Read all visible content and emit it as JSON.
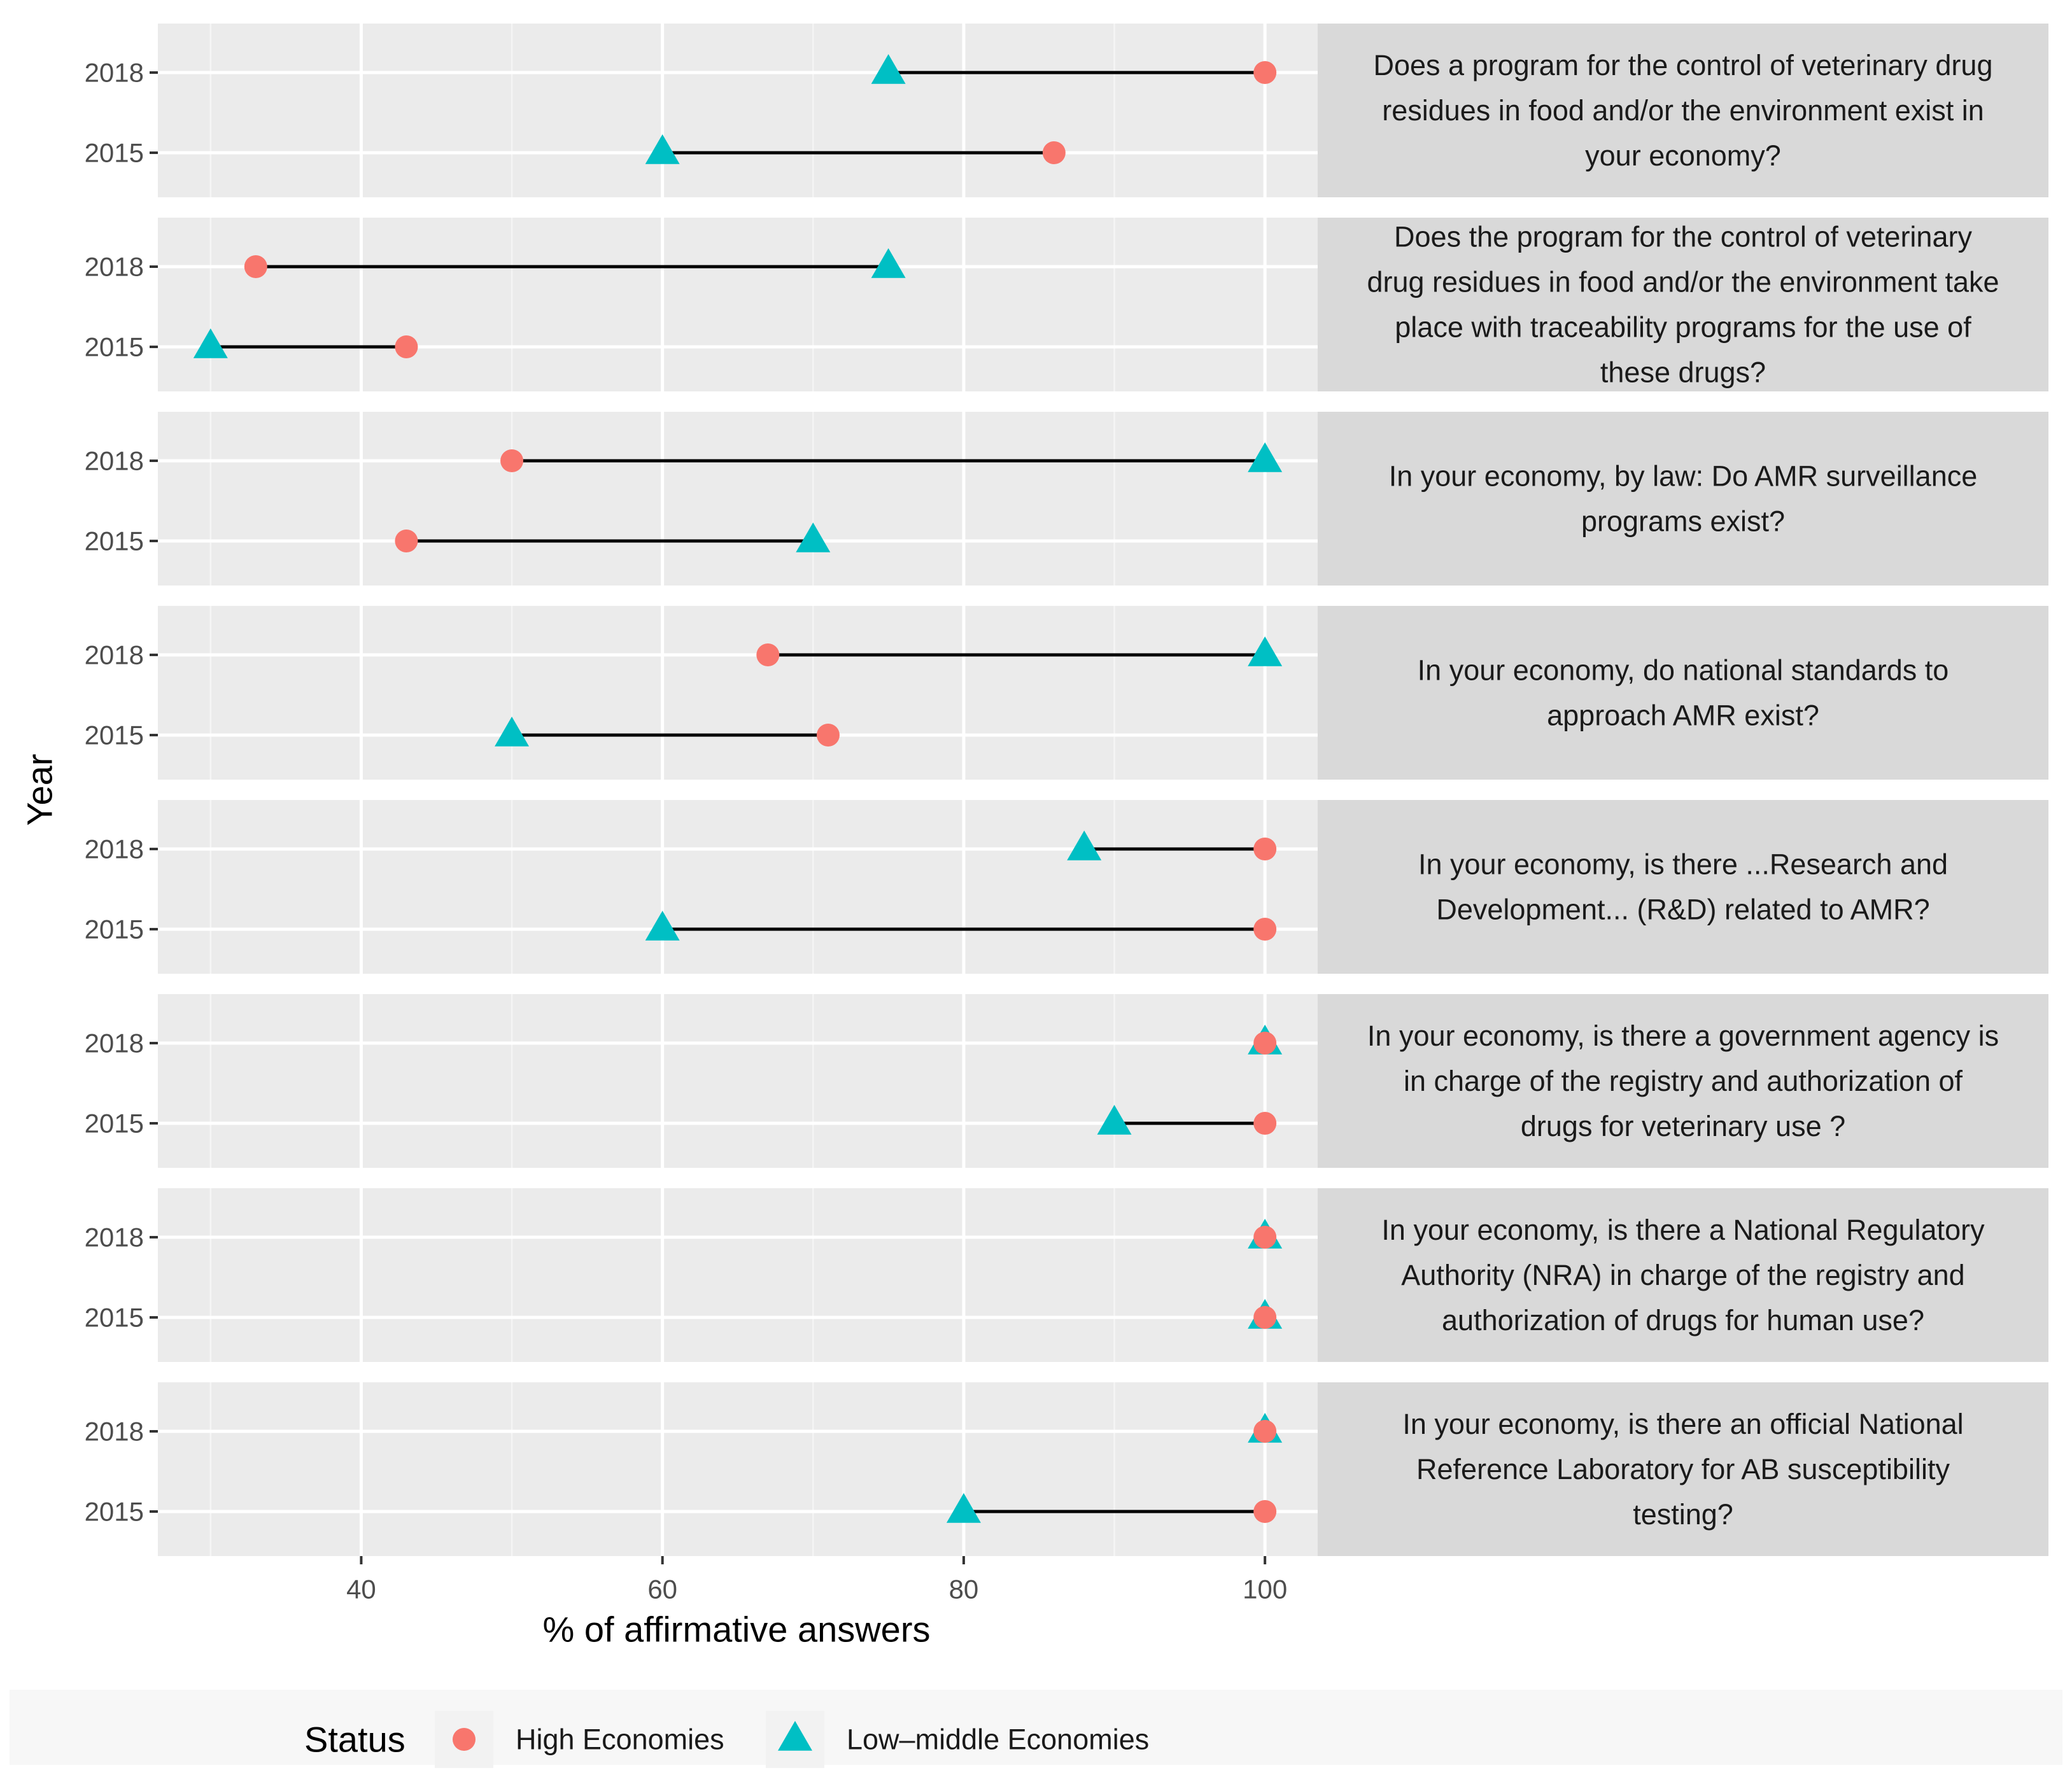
{
  "chart_data": {
    "type": "dumbbell",
    "xlabel": "% of affirmative answers",
    "ylabel": "Year",
    "xlim": [
      26.5,
      103.5
    ],
    "x_ticks": [
      40,
      60,
      80,
      100
    ],
    "years": [
      "2018",
      "2015"
    ],
    "grid": true,
    "legend": {
      "title": "Status",
      "position": "bottom",
      "entries": [
        {
          "name": "High Economies",
          "shape": "circle",
          "color": "#f8766d"
        },
        {
          "name": "Low–middle Economies",
          "shape": "triangle",
          "color": "#00bfc4"
        }
      ]
    },
    "panels": [
      {
        "question": "Does a program for the control of veterinary drug residues in food and/or the environment exist in your economy?",
        "strip_lines": [
          "Does a program for the control of veterinary drug",
          "residues in food and/or the environment exist in",
          "your economy?"
        ],
        "data": [
          {
            "year": "2018",
            "high": 100,
            "low_middle": 75
          },
          {
            "year": "2015",
            "high": 86,
            "low_middle": 60
          }
        ]
      },
      {
        "question": "Does the program for the control of veterinary drug residues in food and/or the environment take place with traceability programs for the use of these drugs?",
        "strip_lines": [
          "Does the program for the control of veterinary",
          "drug residues in food and/or the environment take",
          "place with traceability programs for the use of",
          "these drugs?"
        ],
        "data": [
          {
            "year": "2018",
            "high": 33,
            "low_middle": 75
          },
          {
            "year": "2015",
            "high": 43,
            "low_middle": 30
          }
        ]
      },
      {
        "question": "In your economy, by law: Do AMR surveillance programs exist?",
        "strip_lines": [
          "In your economy, by law: Do AMR surveillance",
          "programs exist?"
        ],
        "data": [
          {
            "year": "2018",
            "high": 50,
            "low_middle": 100
          },
          {
            "year": "2015",
            "high": 43,
            "low_middle": 70
          }
        ]
      },
      {
        "question": "In your economy, do national standards to approach AMR exist?",
        "strip_lines": [
          "In your economy, do national standards to",
          "approach AMR exist?"
        ],
        "data": [
          {
            "year": "2018",
            "high": 67,
            "low_middle": 100
          },
          {
            "year": "2015",
            "high": 71,
            "low_middle": 50
          }
        ]
      },
      {
        "question": "In your economy, is there ...Research and Development... (R&D) related to AMR?",
        "strip_lines": [
          "In your economy, is there ...Research and",
          "Development... (R&D) related to AMR?"
        ],
        "data": [
          {
            "year": "2018",
            "high": 100,
            "low_middle": 88
          },
          {
            "year": "2015",
            "high": 100,
            "low_middle": 60
          }
        ]
      },
      {
        "question": "In your economy, is there a government agency is in charge of the registry and authorization of drugs for veterinary use ?",
        "strip_lines": [
          "In your economy, is there a government agency is",
          "in charge of the registry and authorization of",
          "drugs for veterinary use ?"
        ],
        "data": [
          {
            "year": "2018",
            "high": 100,
            "low_middle": 100
          },
          {
            "year": "2015",
            "high": 100,
            "low_middle": 90
          }
        ]
      },
      {
        "question": "In your economy, is there a National Regulatory Authority (NRA) in charge of the registry and authorization of drugs for human use?",
        "strip_lines": [
          "In your economy, is there a National Regulatory",
          "Authority (NRA) in charge of the registry and",
          "authorization of drugs for human use?"
        ],
        "data": [
          {
            "year": "2018",
            "high": 100,
            "low_middle": 100
          },
          {
            "year": "2015",
            "high": 100,
            "low_middle": 100
          }
        ]
      },
      {
        "question": "In your economy, is there an official National Reference Laboratory for AB susceptibility testing?",
        "strip_lines": [
          "In your economy, is there an official National",
          "Reference Laboratory for AB susceptibility",
          "testing?"
        ],
        "data": [
          {
            "year": "2018",
            "high": 100,
            "low_middle": 100
          },
          {
            "year": "2015",
            "high": 100,
            "low_middle": 80
          }
        ]
      }
    ]
  }
}
